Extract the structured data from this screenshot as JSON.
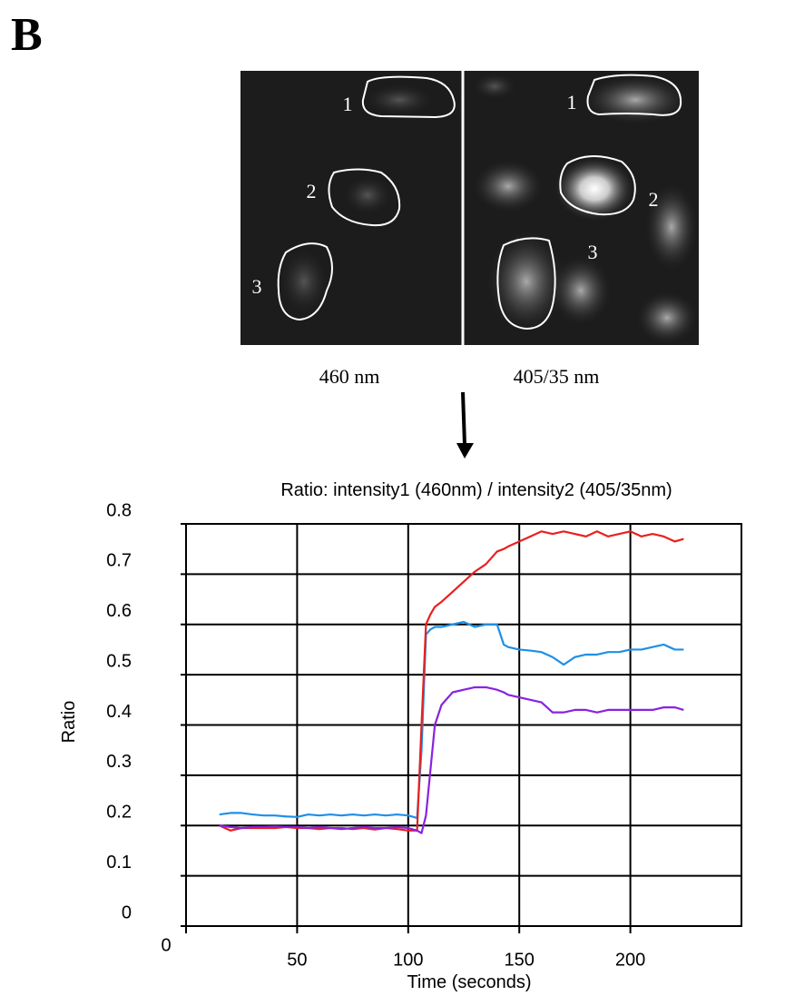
{
  "figure": {
    "panel_label": "B",
    "images": [
      {
        "caption": "460 nm",
        "cell_labels": [
          "1",
          "2",
          "3"
        ]
      },
      {
        "caption": "405/35 nm",
        "cell_labels": [
          "1",
          "2",
          "3"
        ]
      }
    ]
  },
  "chart_data": {
    "type": "line",
    "title": "Ratio: intensity1 (460nm) / intensity2 (405/35nm)",
    "x_label": "Time (seconds)",
    "y_label": "Ratio",
    "xlim": [
      0,
      250
    ],
    "xticks": [
      0,
      50,
      100,
      150,
      200
    ],
    "ylim": [
      0,
      0.8
    ],
    "yticks": [
      0,
      0.1,
      0.2,
      0.3,
      0.4,
      0.5,
      0.6,
      0.7,
      0.8
    ],
    "grid": true,
    "x": [
      15,
      20,
      25,
      30,
      35,
      40,
      45,
      50,
      55,
      60,
      65,
      70,
      75,
      80,
      85,
      90,
      95,
      100,
      104,
      106,
      108,
      110,
      112,
      115,
      120,
      125,
      130,
      135,
      140,
      143,
      145,
      150,
      155,
      160,
      165,
      170,
      175,
      180,
      185,
      190,
      195,
      200,
      205,
      210,
      215,
      220,
      224
    ],
    "series": [
      {
        "color": "#1e8fe6",
        "values": [
          0.222,
          0.225,
          0.225,
          0.222,
          0.22,
          0.22,
          0.218,
          0.217,
          0.222,
          0.22,
          0.222,
          0.22,
          0.222,
          0.22,
          0.222,
          0.22,
          0.222,
          0.22,
          0.215,
          0.35,
          0.58,
          0.59,
          0.595,
          0.595,
          0.6,
          0.605,
          0.595,
          0.6,
          0.6,
          0.56,
          0.555,
          0.55,
          0.548,
          0.545,
          0.535,
          0.52,
          0.535,
          0.54,
          0.54,
          0.545,
          0.545,
          0.55,
          0.55,
          0.555,
          0.56,
          0.55,
          0.55
        ]
      },
      {
        "color": "#e8201e",
        "values": [
          0.2,
          0.19,
          0.195,
          0.195,
          0.195,
          0.195,
          0.197,
          0.195,
          0.195,
          0.193,
          0.195,
          0.195,
          0.193,
          0.195,
          0.192,
          0.195,
          0.193,
          0.19,
          0.19,
          0.4,
          0.6,
          0.62,
          0.635,
          0.645,
          0.665,
          0.685,
          0.705,
          0.72,
          0.745,
          0.75,
          0.755,
          0.765,
          0.775,
          0.785,
          0.78,
          0.785,
          0.78,
          0.775,
          0.785,
          0.775,
          0.78,
          0.785,
          0.775,
          0.78,
          0.775,
          0.765,
          0.77
        ]
      },
      {
        "color": "#8a22e0",
        "values": [
          0.2,
          0.197,
          0.195,
          0.197,
          0.197,
          0.198,
          0.197,
          0.197,
          0.195,
          0.197,
          0.195,
          0.193,
          0.195,
          0.197,
          0.195,
          0.195,
          0.197,
          0.195,
          0.19,
          0.185,
          0.22,
          0.31,
          0.4,
          0.44,
          0.465,
          0.47,
          0.475,
          0.475,
          0.47,
          0.465,
          0.46,
          0.455,
          0.45,
          0.445,
          0.425,
          0.425,
          0.43,
          0.43,
          0.425,
          0.43,
          0.43,
          0.43,
          0.43,
          0.43,
          0.435,
          0.435,
          0.43
        ]
      }
    ]
  }
}
